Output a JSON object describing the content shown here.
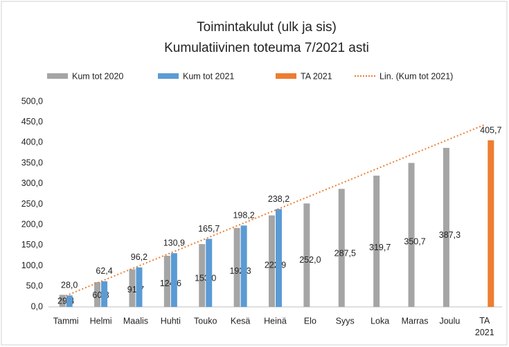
{
  "chart_data": {
    "type": "bar",
    "title": [
      "Toimintakulut (ulk ja sis)",
      "Kumulatiivinen toteuma 7/2021 asti"
    ],
    "categories": [
      "Tammi",
      "Helmi",
      "Maalis",
      "Huhti",
      "Touko",
      "Kesä",
      "Heinä",
      "Elo",
      "Syys",
      "Loka",
      "Marras",
      "Joulu",
      "TA 2021"
    ],
    "series": [
      {
        "name": "Kum tot 2020",
        "color": "#a5a5a5",
        "values": [
          29.4,
          60.3,
          91.7,
          124.6,
          153.0,
          192.3,
          222.9,
          252.0,
          287.5,
          319.7,
          350.7,
          387.3,
          null
        ],
        "value_labels": [
          "29,4",
          "60,3",
          "91,7",
          "124,6",
          "153,0",
          "192,3",
          "222,9",
          "252,0",
          "287,5",
          "319,7",
          "350,7",
          "387,3",
          null
        ]
      },
      {
        "name": "Kum tot 2021",
        "color": "#5b9bd5",
        "values": [
          28.0,
          62.4,
          96.2,
          130.9,
          165.7,
          198.2,
          238.2,
          null,
          null,
          null,
          null,
          null,
          null
        ],
        "value_labels": [
          "28,0",
          "62,4",
          "96,2",
          "130,9",
          "165,7",
          "198,2",
          "238,2",
          null,
          null,
          null,
          null,
          null,
          null
        ]
      },
      {
        "name": "TA 2021",
        "color": "#ed7d31",
        "values": [
          null,
          null,
          null,
          null,
          null,
          null,
          null,
          null,
          null,
          null,
          null,
          null,
          405.7
        ],
        "value_labels": [
          null,
          null,
          null,
          null,
          null,
          null,
          null,
          null,
          null,
          null,
          null,
          null,
          "405,7"
        ]
      }
    ],
    "trendline": {
      "name": "Lin. (Kum tot 2021)",
      "color": "#ed7d31",
      "of_series": 1,
      "kind": "linear"
    },
    "ylim": [
      0,
      500
    ],
    "yticks": [
      {
        "value": 0,
        "label": "0,0"
      },
      {
        "value": 50,
        "label": "50,0"
      },
      {
        "value": 100,
        "label": "100,0"
      },
      {
        "value": 150,
        "label": "150,0"
      },
      {
        "value": 200,
        "label": "200,0"
      },
      {
        "value": 250,
        "label": "250,0"
      },
      {
        "value": 300,
        "label": "300,0"
      },
      {
        "value": 350,
        "label": "350,0"
      },
      {
        "value": 400,
        "label": "400,0"
      },
      {
        "value": 450,
        "label": "450,0"
      },
      {
        "value": 500,
        "label": "500,0"
      }
    ],
    "grid": false
  }
}
